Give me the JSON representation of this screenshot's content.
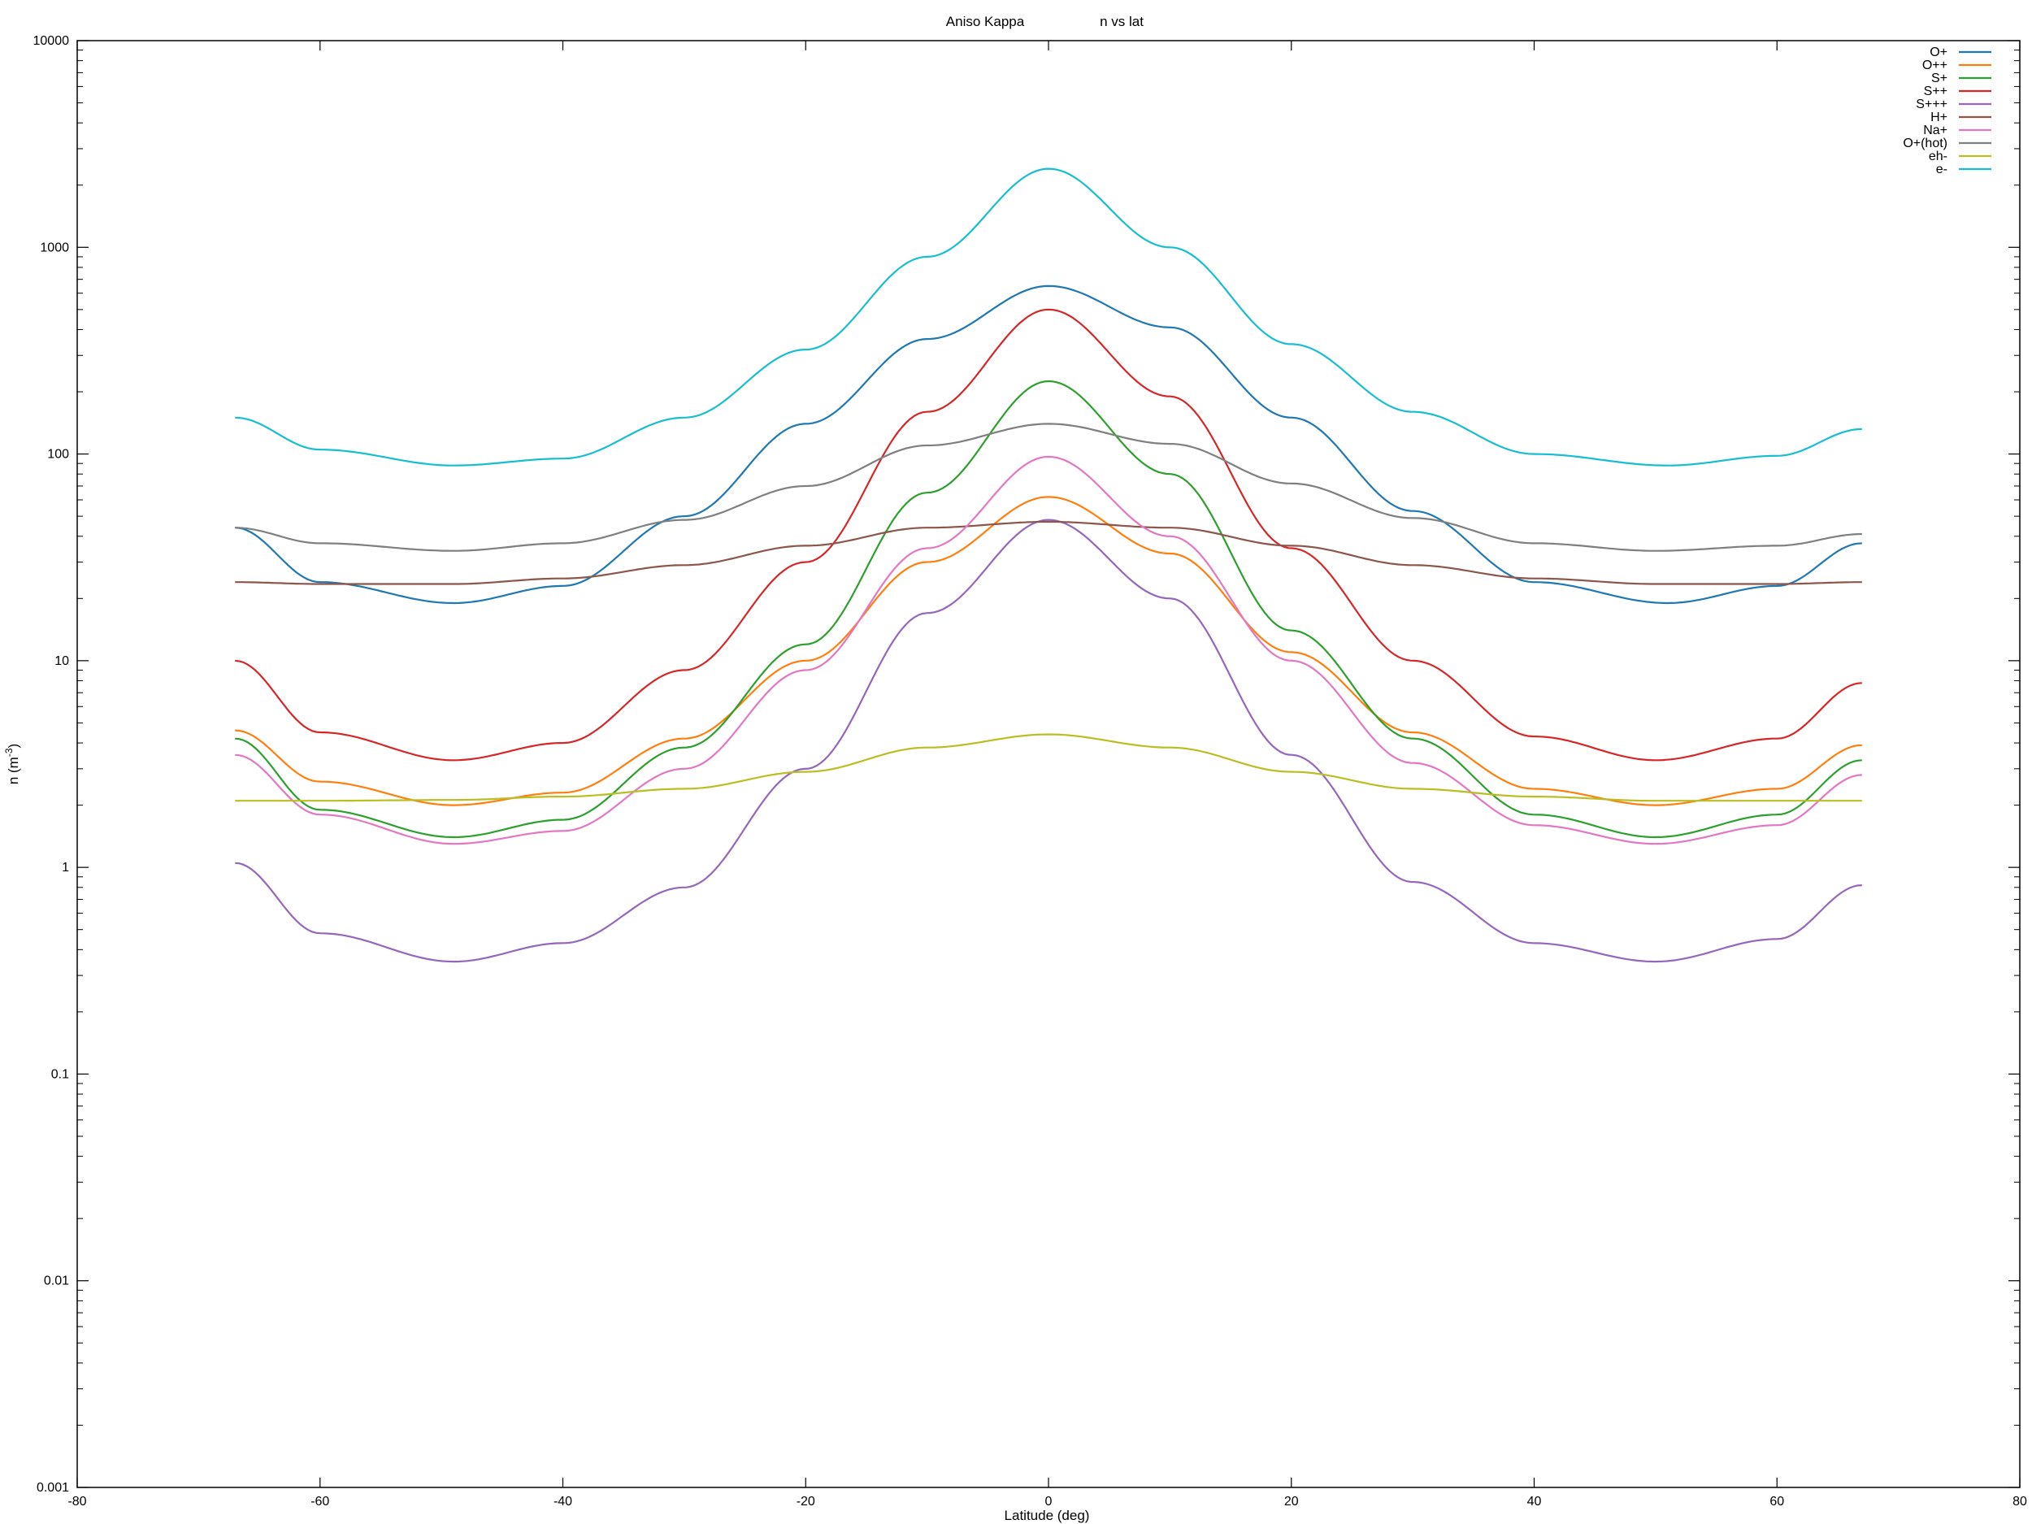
{
  "chart_data": {
    "type": "line",
    "title_left": "Aniso Kappa",
    "title_right": "n vs lat",
    "xlabel": "Latitude (deg)",
    "ylabel_base": "n (m",
    "ylabel_sup": "-3",
    "ylabel_end": ")",
    "xlim": [
      -80,
      80
    ],
    "ylim": [
      0.001,
      10000
    ],
    "yscale": "log",
    "grid": false,
    "legend_position": "top-right",
    "x_ticks": [
      "-80",
      "-60",
      "-40",
      "-20",
      "0",
      "20",
      "40",
      "60",
      "80"
    ],
    "y_ticks": [
      "0.001",
      "0.01",
      "0.1",
      "1",
      "10",
      "100",
      "1000",
      "10000"
    ],
    "series": [
      {
        "name": "O+",
        "color": "#1f77b4",
        "points": [
          [
            -67,
            44
          ],
          [
            -60,
            24
          ],
          [
            -49,
            19
          ],
          [
            -40,
            23
          ],
          [
            -30,
            50
          ],
          [
            -20,
            140
          ],
          [
            -10,
            360
          ],
          [
            0,
            650
          ],
          [
            10,
            410
          ],
          [
            20,
            150
          ],
          [
            30,
            53
          ],
          [
            40,
            24
          ],
          [
            51,
            19
          ],
          [
            60,
            23
          ],
          [
            67,
            37
          ]
        ]
      },
      {
        "name": "O++",
        "color": "#ff7f0e",
        "points": [
          [
            -67,
            4.6
          ],
          [
            -60,
            2.6
          ],
          [
            -49,
            2.0
          ],
          [
            -40,
            2.3
          ],
          [
            -30,
            4.2
          ],
          [
            -20,
            10
          ],
          [
            -10,
            30
          ],
          [
            0,
            62
          ],
          [
            10,
            33
          ],
          [
            20,
            11
          ],
          [
            30,
            4.5
          ],
          [
            40,
            2.4
          ],
          [
            50,
            2.0
          ],
          [
            60,
            2.4
          ],
          [
            67,
            3.9
          ]
        ]
      },
      {
        "name": "S+",
        "color": "#2ca02c",
        "points": [
          [
            -67,
            4.2
          ],
          [
            -60,
            1.9
          ],
          [
            -49,
            1.4
          ],
          [
            -40,
            1.7
          ],
          [
            -30,
            3.8
          ],
          [
            -20,
            12
          ],
          [
            -10,
            65
          ],
          [
            0,
            225
          ],
          [
            10,
            80
          ],
          [
            20,
            14
          ],
          [
            30,
            4.2
          ],
          [
            40,
            1.8
          ],
          [
            50,
            1.4
          ],
          [
            60,
            1.8
          ],
          [
            67,
            3.3
          ]
        ]
      },
      {
        "name": "S++",
        "color": "#d62728",
        "points": [
          [
            -67,
            10
          ],
          [
            -60,
            4.5
          ],
          [
            -49,
            3.3
          ],
          [
            -40,
            4.0
          ],
          [
            -30,
            9
          ],
          [
            -20,
            30
          ],
          [
            -10,
            160
          ],
          [
            0,
            500
          ],
          [
            10,
            190
          ],
          [
            20,
            35
          ],
          [
            30,
            10
          ],
          [
            40,
            4.3
          ],
          [
            50,
            3.3
          ],
          [
            60,
            4.2
          ],
          [
            67,
            7.8
          ]
        ]
      },
      {
        "name": "S+++",
        "color": "#9467bd",
        "points": [
          [
            -67,
            1.05
          ],
          [
            -60,
            0.48
          ],
          [
            -49,
            0.35
          ],
          [
            -40,
            0.43
          ],
          [
            -30,
            0.8
          ],
          [
            -20,
            3.0
          ],
          [
            -10,
            17
          ],
          [
            0,
            48
          ],
          [
            10,
            20
          ],
          [
            20,
            3.5
          ],
          [
            30,
            0.85
          ],
          [
            40,
            0.43
          ],
          [
            50,
            0.35
          ],
          [
            60,
            0.45
          ],
          [
            67,
            0.82
          ]
        ]
      },
      {
        "name": "H+",
        "color": "#8c564b",
        "points": [
          [
            -67,
            24
          ],
          [
            -60,
            23.5
          ],
          [
            -49,
            23.5
          ],
          [
            -40,
            25
          ],
          [
            -30,
            29
          ],
          [
            -20,
            36
          ],
          [
            -10,
            44
          ],
          [
            0,
            47
          ],
          [
            10,
            44
          ],
          [
            20,
            36
          ],
          [
            30,
            29
          ],
          [
            40,
            25
          ],
          [
            50,
            23.5
          ],
          [
            60,
            23.5
          ],
          [
            67,
            24
          ]
        ]
      },
      {
        "name": "Na+",
        "color": "#e377c2",
        "points": [
          [
            -67,
            3.5
          ],
          [
            -60,
            1.8
          ],
          [
            -49,
            1.3
          ],
          [
            -40,
            1.5
          ],
          [
            -30,
            3.0
          ],
          [
            -20,
            9
          ],
          [
            -10,
            35
          ],
          [
            0,
            97
          ],
          [
            10,
            40
          ],
          [
            20,
            10
          ],
          [
            30,
            3.2
          ],
          [
            40,
            1.6
          ],
          [
            50,
            1.3
          ],
          [
            60,
            1.6
          ],
          [
            67,
            2.8
          ]
        ]
      },
      {
        "name": "O+(hot)",
        "color": "#7f7f7f",
        "points": [
          [
            -67,
            44
          ],
          [
            -60,
            37
          ],
          [
            -49,
            34
          ],
          [
            -40,
            37
          ],
          [
            -30,
            48
          ],
          [
            -20,
            70
          ],
          [
            -10,
            110
          ],
          [
            0,
            140
          ],
          [
            10,
            112
          ],
          [
            20,
            72
          ],
          [
            30,
            49
          ],
          [
            40,
            37
          ],
          [
            50,
            34
          ],
          [
            60,
            36
          ],
          [
            67,
            41
          ]
        ]
      },
      {
        "name": "eh-",
        "color": "#bcbd22",
        "points": [
          [
            -67,
            2.1
          ],
          [
            -60,
            2.1
          ],
          [
            -49,
            2.12
          ],
          [
            -40,
            2.2
          ],
          [
            -30,
            2.4
          ],
          [
            -20,
            2.9
          ],
          [
            -10,
            3.8
          ],
          [
            0,
            4.4
          ],
          [
            10,
            3.8
          ],
          [
            20,
            2.9
          ],
          [
            30,
            2.4
          ],
          [
            40,
            2.2
          ],
          [
            50,
            2.1
          ],
          [
            60,
            2.1
          ],
          [
            67,
            2.1
          ]
        ]
      },
      {
        "name": "e-",
        "color": "#17becf",
        "points": [
          [
            -67,
            150
          ],
          [
            -60,
            105
          ],
          [
            -49,
            88
          ],
          [
            -40,
            95
          ],
          [
            -30,
            150
          ],
          [
            -20,
            320
          ],
          [
            -10,
            900
          ],
          [
            0,
            2400
          ],
          [
            10,
            1000
          ],
          [
            20,
            340
          ],
          [
            30,
            160
          ],
          [
            40,
            100
          ],
          [
            51,
            88
          ],
          [
            60,
            98
          ],
          [
            67,
            132
          ]
        ]
      }
    ]
  }
}
